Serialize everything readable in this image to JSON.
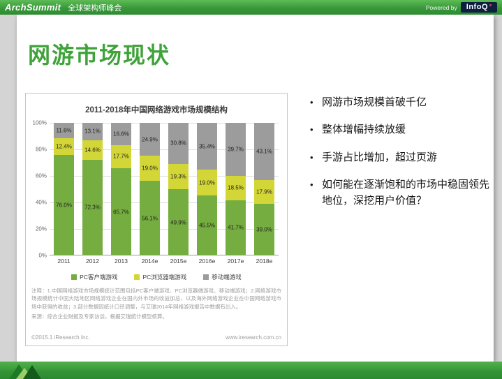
{
  "top_bar": {
    "brand": "ArchSummit",
    "subtitle": "全球架构师峰会",
    "powered_by": "Powered by",
    "infoq_logo": "InfoQ"
  },
  "slide": {
    "title": "网游市场现状",
    "bullets": [
      "网游市场规模首破千亿",
      "整体增幅持续放缓",
      "手游占比增加，超过页游",
      "如何能在逐渐饱和的市场中稳固领先地位，深挖用户价值？"
    ]
  },
  "chart_data": {
    "type": "bar",
    "stacked": true,
    "title": "2011-2018年中国网络游戏市场规模结构",
    "categories": [
      "2011",
      "2012",
      "2013",
      "2014e",
      "2015e",
      "2016e",
      "2017e",
      "2018e"
    ],
    "series": [
      {
        "name": "PC客户端游戏",
        "color": "#76ad40",
        "values": [
          76.0,
          72.3,
          65.7,
          56.1,
          49.9,
          45.5,
          41.7,
          39.0
        ]
      },
      {
        "name": "PC浏览器端游戏",
        "color": "#d3d637",
        "values": [
          12.4,
          14.6,
          17.7,
          19.0,
          19.3,
          19.0,
          18.5,
          17.9
        ]
      },
      {
        "name": "移动端游戏",
        "color": "#9c9c9c",
        "values": [
          11.6,
          13.1,
          16.6,
          24.9,
          30.8,
          35.4,
          39.7,
          43.1
        ]
      }
    ],
    "y_ticks": [
      "0%",
      "20%",
      "40%",
      "60%",
      "80%",
      "100%"
    ],
    "ylim": [
      0,
      100
    ],
    "grid": true,
    "legend_position": "bottom",
    "notes": "注释：1.中国网络游戏市场规模统计范围包括PC客户端游戏、PC浏览器端游戏、移动端游戏；2.网络游戏市场规模统计中国大陆地区网络游戏企业在国内外市场的收益加总，以及海外网络游戏企业在中国网络游戏市场中获得的收益；3.部分数据因统计口径调整，与艾瑞2014年网络游戏报告中数据有出入。",
    "source": "来源：综合企业财报及专家访谈，根据艾瑞统计模型核算。",
    "copyright": "©2015.1 iResearch Inc.",
    "website": "www.iresearch.com.cn"
  }
}
